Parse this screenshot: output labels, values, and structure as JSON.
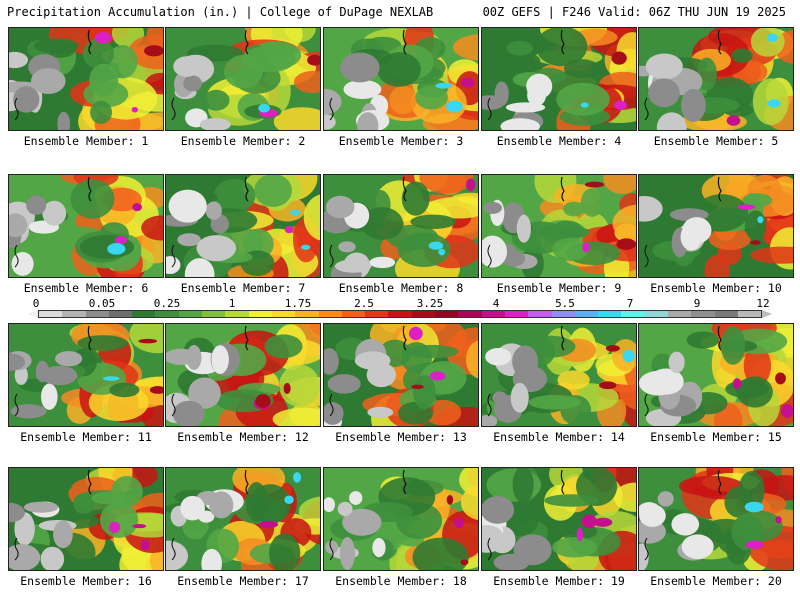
{
  "header": {
    "title_left": "Precipitation Accumulation (in.) | College of DuPage NEXLAB",
    "title_right": "00Z GEFS | F246 Valid: 06Z THU JUN 19 2025"
  },
  "colorbar": {
    "labels": [
      "0",
      "0.05",
      "0.25",
      "1",
      "1.75",
      "2.5",
      "3.25",
      "4",
      "5.5",
      "7",
      "9",
      "12"
    ],
    "colors": [
      "#dcdcdc",
      "#b4b4b4",
      "#8c8c8c",
      "#6e6e6e",
      "#2f7a32",
      "#3d8f3d",
      "#53a646",
      "#7fc040",
      "#b6d83a",
      "#f0f035",
      "#fbd92c",
      "#f9b326",
      "#f58c21",
      "#ef601c",
      "#e23418",
      "#c81413",
      "#a50d18",
      "#8a0a22",
      "#a20a55",
      "#c4108f",
      "#dd1fc7",
      "#c35ef0",
      "#8e8ef4",
      "#5aaff5",
      "#39d7f2",
      "#5ef2ea",
      "#8fd6d6",
      "#a9a9a9",
      "#909090",
      "#7a7a7a",
      "#b8b8b8"
    ]
  },
  "panels": [
    {
      "label": "Ensemble Member: 1"
    },
    {
      "label": "Ensemble Member: 2"
    },
    {
      "label": "Ensemble Member: 3"
    },
    {
      "label": "Ensemble Member: 4"
    },
    {
      "label": "Ensemble Member: 5"
    },
    {
      "label": "Ensemble Member: 6"
    },
    {
      "label": "Ensemble Member: 7"
    },
    {
      "label": "Ensemble Member: 8"
    },
    {
      "label": "Ensemble Member: 9"
    },
    {
      "label": "Ensemble Member: 10"
    },
    {
      "label": "Ensemble Member: 11"
    },
    {
      "label": "Ensemble Member: 12"
    },
    {
      "label": "Ensemble Member: 13"
    },
    {
      "label": "Ensemble Member: 14"
    },
    {
      "label": "Ensemble Member: 15"
    },
    {
      "label": "Ensemble Member: 16"
    },
    {
      "label": "Ensemble Member: 17"
    },
    {
      "label": "Ensemble Member: 18"
    },
    {
      "label": "Ensemble Member: 19"
    },
    {
      "label": "Ensemble Member: 20"
    }
  ]
}
